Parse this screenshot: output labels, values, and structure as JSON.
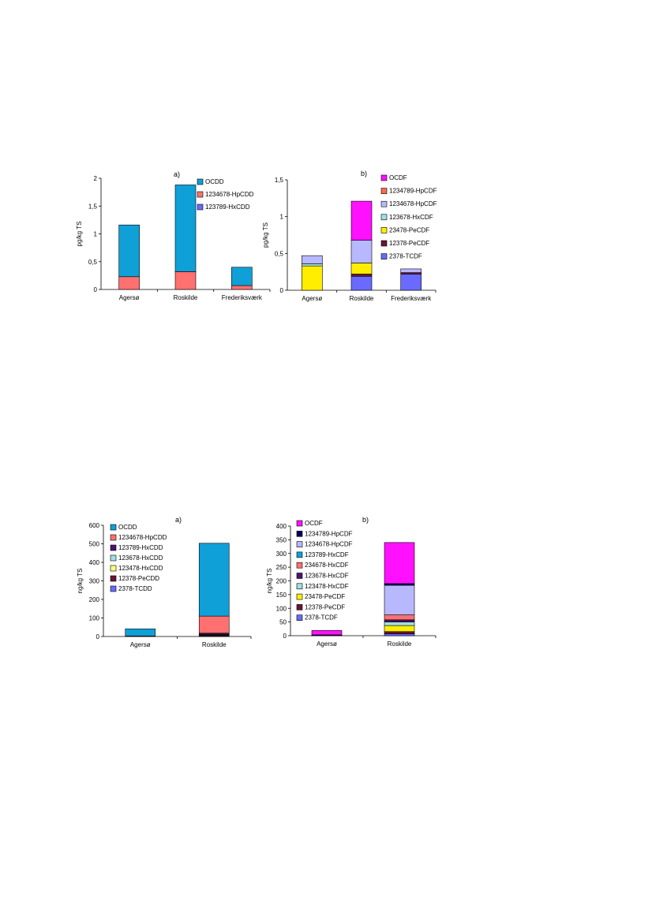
{
  "colors": {
    "OCDD": "#0fa0d8",
    "1234678-HpCDD": "#ff7070",
    "123789-HxCDD": "#4b1470",
    "123678-HxCDD": "#9fe0e0",
    "123478-HxCDD": "#ffff80",
    "12378-PeCDD": "#6a1436",
    "2378-TCDD": "#6a6aff",
    "123789-HxCDD-top": "#6a6aff",
    "OCDF": "#ff10ff",
    "1234789-HpCDF": "#ff6a50",
    "1234789-HpCDF-bottom": "#000060",
    "1234678-HpCDF": "#b8b8ff",
    "123789-HxCDF": "#0fa0d8",
    "234678-HxCDF": "#ff7070",
    "123678-HxCDF": "#9fe0e0",
    "123678-HxCDF-bottom": "#4b1470",
    "123478-HxCDF": "#9fe0e0",
    "23478-PeCDF": "#ffee00",
    "12378-PeCDF": "#6a1436",
    "2378-TCDF": "#6a6aff"
  },
  "chart_data": [
    {
      "id": "top-left",
      "type": "bar",
      "panel_label": "a)",
      "ylabel": "pg/kg TS",
      "categories": [
        "Agersø",
        "Roskilde",
        "Frederiksværk"
      ],
      "ylim": [
        0,
        2
      ],
      "yticks": [
        0,
        0.5,
        1,
        1.5,
        2
      ],
      "ytick_labels": [
        "0",
        "0,5",
        "1",
        "1,5",
        "2"
      ],
      "legend": [
        "OCDD",
        "1234678-HpCDD",
        "123789-HxCDD"
      ],
      "legend_color_keys": [
        "OCDD",
        "1234678-HpCDD",
        "123789-HxCDD-top"
      ],
      "series": [
        {
          "name": "123789-HxCDD",
          "color_key": "123789-HxCDD-top",
          "values": [
            0,
            0,
            0
          ]
        },
        {
          "name": "1234678-HpCDD",
          "color_key": "1234678-HpCDD",
          "values": [
            0.23,
            0.32,
            0.07
          ]
        },
        {
          "name": "OCDD",
          "color_key": "OCDD",
          "values": [
            0.93,
            1.56,
            0.33
          ]
        }
      ]
    },
    {
      "id": "top-right",
      "type": "bar",
      "panel_label": "b)",
      "ylabel": "pg/kg TS",
      "categories": [
        "Agersø",
        "Roskilde",
        "Frederiksværk"
      ],
      "ylim": [
        0,
        1.5
      ],
      "yticks": [
        0,
        0.5,
        1,
        1.5
      ],
      "ytick_labels": [
        "0",
        "0,5",
        "1",
        "1,5"
      ],
      "legend": [
        "OCDF",
        "1234789-HpCDF",
        "1234678-HpCDF",
        "123678-HxCDF",
        "23478-PeCDF",
        "12378-PeCDF",
        "2378-TCDF"
      ],
      "legend_color_keys": [
        "OCDF",
        "1234789-HpCDF",
        "1234678-HpCDF",
        "123678-HxCDF",
        "23478-PeCDF",
        "12378-PeCDF",
        "2378-TCDF"
      ],
      "series": [
        {
          "name": "2378-TCDF",
          "color_key": "2378-TCDF",
          "values": [
            0,
            0.19,
            0.22
          ]
        },
        {
          "name": "12378-PeCDF",
          "color_key": "12378-PeCDF",
          "values": [
            0,
            0.03,
            0.02
          ]
        },
        {
          "name": "23478-PeCDF",
          "color_key": "23478-PeCDF",
          "values": [
            0.33,
            0.15,
            0
          ]
        },
        {
          "name": "123678-HxCDF",
          "color_key": "123678-HxCDF",
          "values": [
            0.03,
            0,
            0
          ]
        },
        {
          "name": "1234678-HpCDF",
          "color_key": "1234678-HpCDF",
          "values": [
            0.11,
            0.31,
            0.05
          ]
        },
        {
          "name": "1234789-HpCDF",
          "color_key": "1234789-HpCDF",
          "values": [
            0,
            0,
            0
          ]
        },
        {
          "name": "OCDF",
          "color_key": "OCDF",
          "values": [
            0,
            0.53,
            0
          ]
        }
      ]
    },
    {
      "id": "bottom-left",
      "type": "bar",
      "panel_label": "a)",
      "ylabel": "ng/kg TS",
      "categories": [
        "Agersø",
        "Roskilde"
      ],
      "ylim": [
        0,
        600
      ],
      "yticks": [
        0,
        100,
        200,
        300,
        400,
        500,
        600
      ],
      "ytick_labels": [
        "0",
        "100",
        "200",
        "300",
        "400",
        "500",
        "600"
      ],
      "legend": [
        "OCDD",
        "1234678-HpCDD",
        "123789-HxCDD",
        "123678-HxCDD",
        "123478-HxCDD",
        "12378-PeCDD",
        "2378-TCDD"
      ],
      "legend_color_keys": [
        "OCDD",
        "1234678-HpCDD",
        "123789-HxCDD",
        "123678-HxCDD",
        "123478-HxCDD",
        "12378-PeCDD",
        "2378-TCDD"
      ],
      "series": [
        {
          "name": "2378-TCDD",
          "color_key": "2378-TCDD",
          "values": [
            0,
            2
          ]
        },
        {
          "name": "12378-PeCDD",
          "color_key": "12378-PeCDD",
          "values": [
            0,
            4
          ]
        },
        {
          "name": "123478-HxCDD",
          "color_key": "123478-HxCDD",
          "values": [
            0,
            3
          ]
        },
        {
          "name": "123678-HxCDD",
          "color_key": "123678-HxCDD",
          "values": [
            0,
            3
          ]
        },
        {
          "name": "123789-HxCDD",
          "color_key": "123789-HxCDD",
          "values": [
            0,
            6
          ]
        },
        {
          "name": "1234678-HpCDD",
          "color_key": "1234678-HpCDD",
          "values": [
            3,
            92
          ]
        },
        {
          "name": "OCDD",
          "color_key": "OCDD",
          "values": [
            38,
            393
          ]
        }
      ]
    },
    {
      "id": "bottom-right",
      "type": "bar",
      "panel_label": "b)",
      "ylabel": "ng/kg TS",
      "categories": [
        "Agersø",
        "Roskilde"
      ],
      "ylim": [
        0,
        400
      ],
      "yticks": [
        0,
        50,
        100,
        150,
        200,
        250,
        300,
        350,
        400
      ],
      "ytick_labels": [
        "0",
        "50",
        "100",
        "150",
        "200",
        "250",
        "300",
        "350",
        "400"
      ],
      "legend": [
        "OCDF",
        "1234789-HpCDF",
        "1234678-HpCDF",
        "123789-HxCDF",
        "234678-HxCDF",
        "123678-HxCDF",
        "123478-HxCDF",
        "23478-PeCDF",
        "12378-PeCDF",
        "2378-TCDF"
      ],
      "legend_color_keys": [
        "OCDF",
        "1234789-HpCDF-bottom",
        "1234678-HpCDF",
        "123789-HxCDF",
        "234678-HxCDF",
        "123678-HxCDF-bottom",
        "123478-HxCDF",
        "23478-PeCDF",
        "12378-PeCDF",
        "2378-TCDF"
      ],
      "series": [
        {
          "name": "2378-TCDF",
          "color_key": "2378-TCDF",
          "values": [
            2,
            7
          ]
        },
        {
          "name": "12378-PeCDF",
          "color_key": "12378-PeCDF",
          "values": [
            1,
            8
          ]
        },
        {
          "name": "23478-PeCDF",
          "color_key": "23478-PeCDF",
          "values": [
            0,
            22
          ]
        },
        {
          "name": "123478-HxCDF",
          "color_key": "123478-HxCDF",
          "values": [
            0,
            13
          ]
        },
        {
          "name": "123678-HxCDF",
          "color_key": "123678-HxCDF-bottom",
          "values": [
            0,
            8
          ]
        },
        {
          "name": "234678-HxCDF",
          "color_key": "234678-HxCDF",
          "values": [
            0,
            18
          ]
        },
        {
          "name": "123789-HxCDF",
          "color_key": "123789-HxCDF",
          "values": [
            0,
            0
          ]
        },
        {
          "name": "1234678-HpCDF",
          "color_key": "1234678-HpCDF",
          "values": [
            0,
            108
          ]
        },
        {
          "name": "1234789-HpCDF",
          "color_key": "1234789-HpCDF-bottom",
          "values": [
            0,
            6
          ]
        },
        {
          "name": "OCDF",
          "color_key": "OCDF",
          "values": [
            16,
            150
          ]
        }
      ]
    }
  ]
}
